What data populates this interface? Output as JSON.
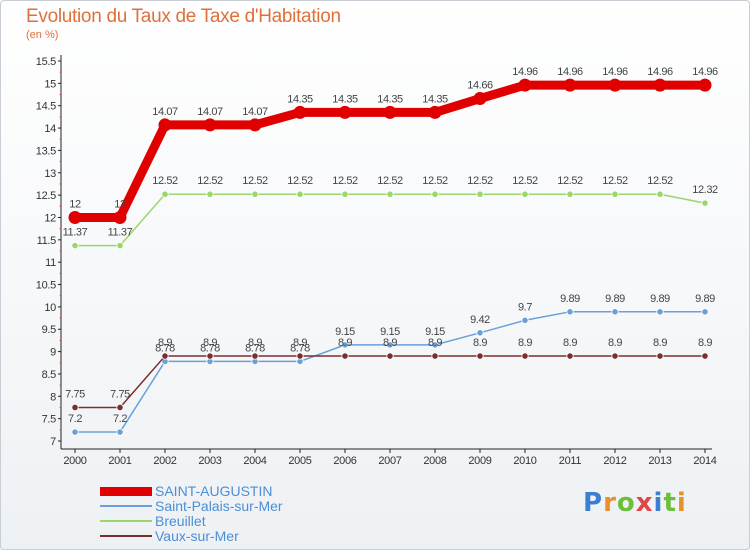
{
  "title": "Evolution du Taux de Taxe d'Habitation",
  "subtitle": "(en %)",
  "logo": "Proxiti",
  "chart_data": {
    "type": "line",
    "title": "Evolution du Taux de Taxe d'Habitation",
    "ylabel": "(en %)",
    "xlabel": "",
    "x": [
      "2000",
      "2001",
      "2002",
      "2003",
      "2004",
      "2005",
      "2006",
      "2007",
      "2008",
      "2009",
      "2010",
      "2011",
      "2012",
      "2013",
      "2014"
    ],
    "ylim": [
      7,
      15.5
    ],
    "yticks": [
      "7",
      "7.5",
      "8",
      "8.5",
      "9",
      "9.5",
      "10",
      "10.5",
      "11",
      "11.5",
      "12",
      "12.5",
      "13",
      "13.5",
      "14",
      "14.5",
      "15",
      "15.5"
    ],
    "grid": false,
    "legend_position": "bottom-left",
    "series": [
      {
        "name": "SAINT-AUGUSTIN",
        "color": "#e00000",
        "values": [
          12,
          12,
          14.07,
          14.07,
          14.07,
          14.35,
          14.35,
          14.35,
          14.35,
          14.66,
          14.96,
          14.96,
          14.96,
          14.96,
          14.96
        ],
        "labels": [
          "12",
          "12",
          "14.07",
          "14.07",
          "14.07",
          "14.35",
          "14.35",
          "14.35",
          "14.35",
          "14.66",
          "14.96",
          "14.96",
          "14.96",
          "14.96",
          "14.96"
        ]
      },
      {
        "name": "Saint-Palais-sur-Mer",
        "color": "#6aa0d8",
        "values": [
          7.2,
          7.2,
          8.78,
          8.78,
          8.78,
          8.78,
          9.15,
          9.15,
          9.15,
          9.42,
          9.7,
          9.89,
          9.89,
          9.89,
          9.89
        ],
        "labels": [
          "7.2",
          "7.2",
          "8.78",
          "8.78",
          "8.78",
          "8.78",
          "9.15",
          "9.15",
          "9.15",
          "9.42",
          "9.7",
          "9.89",
          "9.89",
          "9.89",
          "9.89"
        ]
      },
      {
        "name": "Breuillet",
        "color": "#9ad66a",
        "values": [
          11.37,
          11.37,
          12.52,
          12.52,
          12.52,
          12.52,
          12.52,
          12.52,
          12.52,
          12.52,
          12.52,
          12.52,
          12.52,
          12.52,
          12.32
        ],
        "labels": [
          "11.37",
          "11.37",
          "12.52",
          "12.52",
          "12.52",
          "12.52",
          "12.52",
          "12.52",
          "12.52",
          "12.52",
          "12.52",
          "12.52",
          "12.52",
          "12.52",
          "12.32"
        ]
      },
      {
        "name": "Vaux-sur-Mer",
        "color": "#7a2e2e",
        "values": [
          7.75,
          7.75,
          8.9,
          8.9,
          8.9,
          8.9,
          8.9,
          8.9,
          8.9,
          8.9,
          8.9,
          8.9,
          8.9,
          8.9,
          8.9
        ],
        "labels": [
          "7.75",
          "7.75",
          "8.9",
          "8.9",
          "8.9",
          "8.9",
          "8.9",
          "8.9",
          "8.9",
          "8.9",
          "8.9",
          "8.9",
          "8.9",
          "8.9",
          "8.9"
        ]
      }
    ]
  }
}
